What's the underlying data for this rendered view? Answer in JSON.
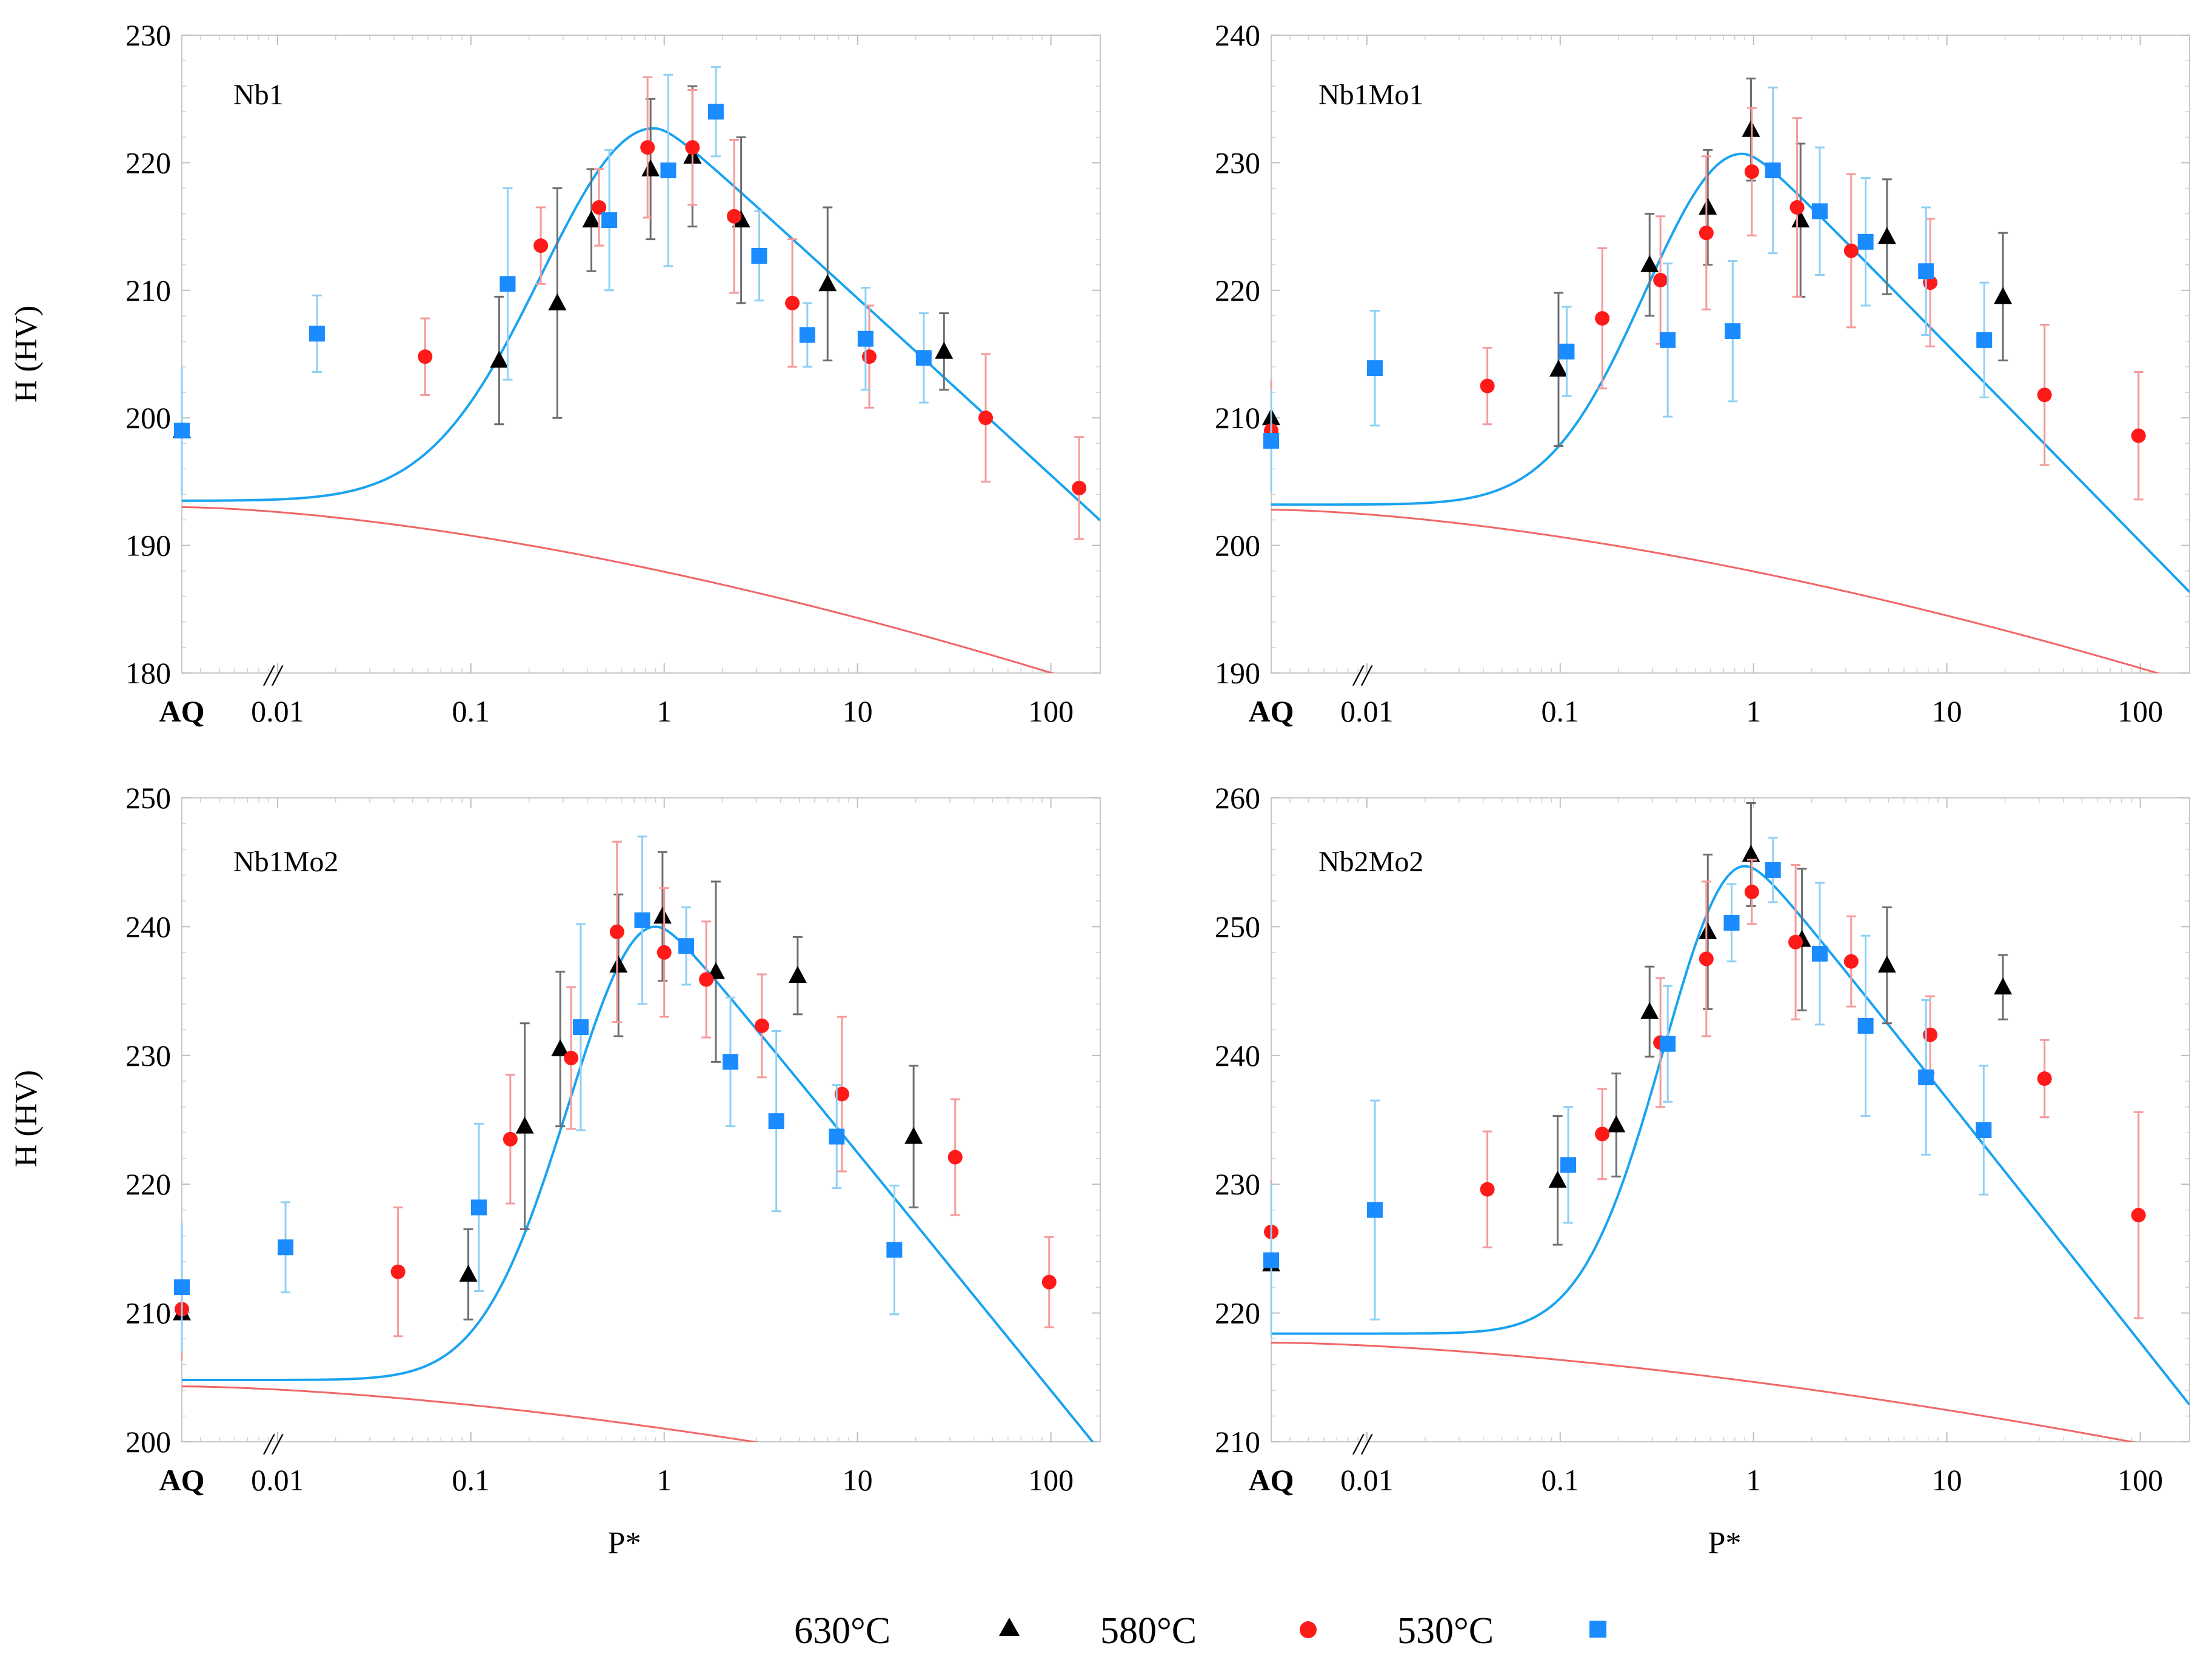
{
  "figure": {
    "legend": [
      {
        "label": "630°C",
        "marker": "triangle",
        "color": "#000000"
      },
      {
        "label": "580°C",
        "marker": "circle",
        "color": "#ff1a1a"
      },
      {
        "label": "530°C",
        "marker": "square",
        "color": "#1a8cff"
      }
    ],
    "colors": {
      "fit_curve": "#1aa3f0",
      "lower_curve": "#f06666",
      "err_630": "#6e6e6e",
      "err_580": "#f59a9a",
      "err_530": "#8fd0f5"
    }
  },
  "chart_data": [
    {
      "type": "scatter",
      "title": "Nb1",
      "xlabel": "",
      "ylabel": "H (HV)",
      "xscale": "log",
      "xlim": [
        0.0032,
        180
      ],
      "ylim": [
        180,
        230
      ],
      "yticks": [
        180,
        190,
        200,
        210,
        220,
        230
      ],
      "xtick_labels": [
        "AQ",
        "0.01",
        "0.1",
        "1",
        "10",
        "100"
      ],
      "axis_break": "//",
      "aq": [
        {
          "series": "630°C",
          "y": 199,
          "err": 0
        },
        {
          "series": "580°C",
          "y": 199,
          "err": 5
        },
        {
          "series": "530°C",
          "y": 199,
          "err": 5
        }
      ],
      "series": [
        {
          "name": "630°C",
          "points": [
            {
              "x": 0.14,
              "y": 204.5,
              "err": 5
            },
            {
              "x": 0.28,
              "y": 209,
              "err": 9
            },
            {
              "x": 0.42,
              "y": 215.5,
              "err": 4
            },
            {
              "x": 0.85,
              "y": 219.5,
              "err": 5.5
            },
            {
              "x": 1.4,
              "y": 220.5,
              "err": 5.5
            },
            {
              "x": 2.5,
              "y": 215.5,
              "err": 6.5
            },
            {
              "x": 7,
              "y": 210.5,
              "err": 6
            },
            {
              "x": 28,
              "y": 205.2,
              "err": 3
            }
          ]
        },
        {
          "name": "580°C",
          "points": [
            {
              "x": 0.058,
              "y": 204.8,
              "err": 3
            },
            {
              "x": 0.23,
              "y": 213.5,
              "err": 3
            },
            {
              "x": 0.46,
              "y": 216.5,
              "err": 3
            },
            {
              "x": 0.82,
              "y": 221.2,
              "err": 5.5
            },
            {
              "x": 1.4,
              "y": 221.2,
              "err": 4.5
            },
            {
              "x": 2.3,
              "y": 215.8,
              "err": 6
            },
            {
              "x": 4.6,
              "y": 209,
              "err": 5
            },
            {
              "x": 11.5,
              "y": 204.8,
              "err": 4
            },
            {
              "x": 46,
              "y": 200,
              "err": 5
            },
            {
              "x": 140,
              "y": 194.5,
              "err": 4
            }
          ]
        },
        {
          "name": "530°C",
          "points": [
            {
              "x": 0.016,
              "y": 206.6,
              "err": 3
            },
            {
              "x": 0.155,
              "y": 210.5,
              "err": 7.5
            },
            {
              "x": 0.52,
              "y": 215.5,
              "err": 5.5
            },
            {
              "x": 1.05,
              "y": 219.4,
              "err": 7.5
            },
            {
              "x": 1.85,
              "y": 224,
              "err": 3.5
            },
            {
              "x": 3.1,
              "y": 212.7,
              "err": 3.5
            },
            {
              "x": 5.5,
              "y": 206.5,
              "err": 2.5
            },
            {
              "x": 11,
              "y": 206.2,
              "err": 4
            },
            {
              "x": 22,
              "y": 204.7,
              "err": 3.5
            }
          ]
        }
      ],
      "fit": {
        "baseline": 193.5,
        "peak": 222.7,
        "peak_x": 0.88,
        "left_width": 0.58,
        "right_slope": 13.9
      },
      "lower": {
        "start_x": 0.0032,
        "start_y": 193,
        "rate": 6.8
      }
    },
    {
      "type": "scatter",
      "title": "Nb1Mo1",
      "xlabel": "",
      "ylabel": "",
      "xscale": "log",
      "xlim": [
        0.0032,
        180
      ],
      "ylim": [
        190,
        240
      ],
      "yticks": [
        190,
        200,
        210,
        220,
        230,
        240
      ],
      "xtick_labels": [
        "AQ",
        "0.01",
        "0.1",
        "1",
        "10",
        "100"
      ],
      "axis_break": "//",
      "aq": [
        {
          "series": "630°C",
          "y": 210,
          "err": 0
        },
        {
          "series": "580°C",
          "y": 209,
          "err": 4
        },
        {
          "series": "530°C",
          "y": 208.2,
          "err": 4
        }
      ],
      "series": [
        {
          "name": "630°C",
          "points": [
            {
              "x": 0.098,
              "y": 213.8,
              "err": 6
            },
            {
              "x": 0.29,
              "y": 222,
              "err": 4
            },
            {
              "x": 0.58,
              "y": 226.5,
              "err": 4.5
            },
            {
              "x": 0.97,
              "y": 232.6,
              "err": 4
            },
            {
              "x": 1.75,
              "y": 225.5,
              "err": 6
            },
            {
              "x": 4.9,
              "y": 224.2,
              "err": 4.5
            },
            {
              "x": 19.5,
              "y": 219.5,
              "err": 5
            }
          ]
        },
        {
          "name": "580°C",
          "points": [
            {
              "x": 0.042,
              "y": 212.5,
              "err": 3
            },
            {
              "x": 0.165,
              "y": 217.8,
              "err": 5.5
            },
            {
              "x": 0.33,
              "y": 220.8,
              "err": 5
            },
            {
              "x": 0.57,
              "y": 224.5,
              "err": 6
            },
            {
              "x": 0.98,
              "y": 229.3,
              "err": 5
            },
            {
              "x": 1.68,
              "y": 226.5,
              "err": 7
            },
            {
              "x": 3.2,
              "y": 223.1,
              "err": 6
            },
            {
              "x": 8.2,
              "y": 220.6,
              "err": 5
            },
            {
              "x": 32,
              "y": 211.8,
              "err": 5.5
            },
            {
              "x": 98,
              "y": 208.6,
              "err": 5
            }
          ]
        },
        {
          "name": "530°C",
          "points": [
            {
              "x": 0.011,
              "y": 213.9,
              "err": 4.5
            },
            {
              "x": 0.108,
              "y": 215.2,
              "err": 3.5
            },
            {
              "x": 0.36,
              "y": 216.1,
              "err": 6
            },
            {
              "x": 0.78,
              "y": 216.8,
              "err": 5.5
            },
            {
              "x": 1.26,
              "y": 229.4,
              "err": 6.5
            },
            {
              "x": 2.2,
              "y": 226.2,
              "err": 5
            },
            {
              "x": 3.8,
              "y": 223.8,
              "err": 5
            },
            {
              "x": 7.8,
              "y": 221.5,
              "err": 5
            },
            {
              "x": 15.6,
              "y": 216.1,
              "err": 4.5
            }
          ]
        }
      ],
      "fit": {
        "baseline": 203.2,
        "peak": 230.7,
        "peak_x": 0.87,
        "left_width": 0.5,
        "right_slope": 15.5
      },
      "lower": {
        "start_x": 0.0032,
        "start_y": 202.8,
        "rate": 6.5
      }
    },
    {
      "type": "scatter",
      "title": "Nb1Mo2",
      "xlabel": "P*",
      "ylabel": "H (HV)",
      "xscale": "log",
      "xlim": [
        0.0032,
        180
      ],
      "ylim": [
        200,
        250
      ],
      "yticks": [
        200,
        210,
        220,
        230,
        240,
        250
      ],
      "xtick_labels": [
        "AQ",
        "0.01",
        "0.1",
        "1",
        "10",
        "100"
      ],
      "axis_break": "//",
      "aq": [
        {
          "series": "630°C",
          "y": 210,
          "err": 0
        },
        {
          "series": "580°C",
          "y": 210.3,
          "err": 4
        },
        {
          "series": "530°C",
          "y": 212,
          "err": 5
        }
      ],
      "series": [
        {
          "name": "630°C",
          "points": [
            {
              "x": 0.097,
              "y": 213,
              "err": 3.5
            },
            {
              "x": 0.19,
              "y": 224.5,
              "err": 8
            },
            {
              "x": 0.29,
              "y": 230.5,
              "err": 6
            },
            {
              "x": 0.58,
              "y": 237,
              "err": 5.5
            },
            {
              "x": 0.98,
              "y": 240.8,
              "err": 5
            },
            {
              "x": 1.85,
              "y": 236.5,
              "err": 7
            },
            {
              "x": 4.9,
              "y": 236.2,
              "err": 3
            },
            {
              "x": 19.5,
              "y": 223.7,
              "err": 5.5
            }
          ]
        },
        {
          "name": "580°C",
          "points": [
            {
              "x": 0.042,
              "y": 213.2,
              "err": 5
            },
            {
              "x": 0.16,
              "y": 223.5,
              "err": 5
            },
            {
              "x": 0.33,
              "y": 229.8,
              "err": 5.5
            },
            {
              "x": 0.57,
              "y": 239.6,
              "err": 7
            },
            {
              "x": 1.0,
              "y": 238,
              "err": 5
            },
            {
              "x": 1.65,
              "y": 235.9,
              "err": 4.5
            },
            {
              "x": 3.2,
              "y": 232.3,
              "err": 4
            },
            {
              "x": 8.3,
              "y": 227,
              "err": 6
            },
            {
              "x": 32,
              "y": 222.1,
              "err": 4.5
            },
            {
              "x": 98,
              "y": 212.4,
              "err": 3.5
            }
          ]
        },
        {
          "name": "530°C",
          "points": [
            {
              "x": 0.011,
              "y": 215.1,
              "err": 3.5
            },
            {
              "x": 0.11,
              "y": 218.2,
              "err": 6.5
            },
            {
              "x": 0.37,
              "y": 232.2,
              "err": 8
            },
            {
              "x": 0.77,
              "y": 240.5,
              "err": 6.5
            },
            {
              "x": 1.3,
              "y": 238.5,
              "err": 3
            },
            {
              "x": 2.2,
              "y": 229.5,
              "err": 5
            },
            {
              "x": 3.8,
              "y": 224.9,
              "err": 7
            },
            {
              "x": 7.8,
              "y": 223.7,
              "err": 4
            },
            {
              "x": 15.5,
              "y": 214.9,
              "err": 5
            }
          ]
        }
      ],
      "fit": {
        "baseline": 204.8,
        "peak": 240.0,
        "peak_x": 0.9,
        "left_width": 0.45,
        "right_slope": 18.5
      },
      "lower": {
        "start_x": 0.0032,
        "start_y": 204.3,
        "rate": 4.4
      }
    },
    {
      "type": "scatter",
      "title": "Nb2Mo2",
      "xlabel": "P*",
      "ylabel": "",
      "xscale": "log",
      "xlim": [
        0.0032,
        180
      ],
      "ylim": [
        210,
        260
      ],
      "yticks": [
        210,
        220,
        230,
        240,
        250,
        260
      ],
      "xtick_labels": [
        "AQ",
        "0.01",
        "0.1",
        "1",
        "10",
        "100"
      ],
      "axis_break": "//",
      "aq": [
        {
          "series": "630°C",
          "y": 223.8,
          "err": 0
        },
        {
          "series": "580°C",
          "y": 226.3,
          "err": 4
        },
        {
          "series": "530°C",
          "y": 224.1,
          "err": 6
        }
      ],
      "series": [
        {
          "name": "630°C",
          "points": [
            {
              "x": 0.097,
              "y": 230.3,
              "err": 5
            },
            {
              "x": 0.195,
              "y": 234.6,
              "err": 4
            },
            {
              "x": 0.29,
              "y": 243.4,
              "err": 3.5
            },
            {
              "x": 0.58,
              "y": 249.6,
              "err": 6
            },
            {
              "x": 0.97,
              "y": 255.6,
              "err": 4
            },
            {
              "x": 1.78,
              "y": 249,
              "err": 5.5
            },
            {
              "x": 4.9,
              "y": 247,
              "err": 4.5
            },
            {
              "x": 19.5,
              "y": 245.3,
              "err": 2.5
            }
          ]
        },
        {
          "name": "580°C",
          "points": [
            {
              "x": 0.042,
              "y": 229.6,
              "err": 4.5
            },
            {
              "x": 0.165,
              "y": 233.9,
              "err": 3.5
            },
            {
              "x": 0.33,
              "y": 241,
              "err": 5
            },
            {
              "x": 0.57,
              "y": 247.5,
              "err": 6
            },
            {
              "x": 0.98,
              "y": 252.7,
              "err": 2.5
            },
            {
              "x": 1.65,
              "y": 248.8,
              "err": 6
            },
            {
              "x": 3.2,
              "y": 247.3,
              "err": 3.5
            },
            {
              "x": 8.2,
              "y": 241.6,
              "err": 3
            },
            {
              "x": 32,
              "y": 238.2,
              "err": 3
            },
            {
              "x": 98,
              "y": 227.6,
              "err": 8
            }
          ]
        },
        {
          "name": "530°C",
          "points": [
            {
              "x": 0.011,
              "y": 228,
              "err": 8.5
            },
            {
              "x": 0.11,
              "y": 231.5,
              "err": 4.5
            },
            {
              "x": 0.36,
              "y": 240.9,
              "err": 4.5
            },
            {
              "x": 0.77,
              "y": 250.3,
              "err": 3
            },
            {
              "x": 1.26,
              "y": 254.4,
              "err": 2.5
            },
            {
              "x": 2.2,
              "y": 247.9,
              "err": 5.5
            },
            {
              "x": 3.8,
              "y": 242.3,
              "err": 7
            },
            {
              "x": 7.8,
              "y": 238.3,
              "err": 6
            },
            {
              "x": 15.5,
              "y": 234.2,
              "err": 5
            }
          ]
        }
      ],
      "fit": {
        "baseline": 218.4,
        "peak": 254.7,
        "peak_x": 0.9,
        "left_width": 0.42,
        "right_slope": 19.0
      },
      "lower": {
        "start_x": 0.0032,
        "start_y": 217.7,
        "rate": 4.1
      }
    }
  ]
}
